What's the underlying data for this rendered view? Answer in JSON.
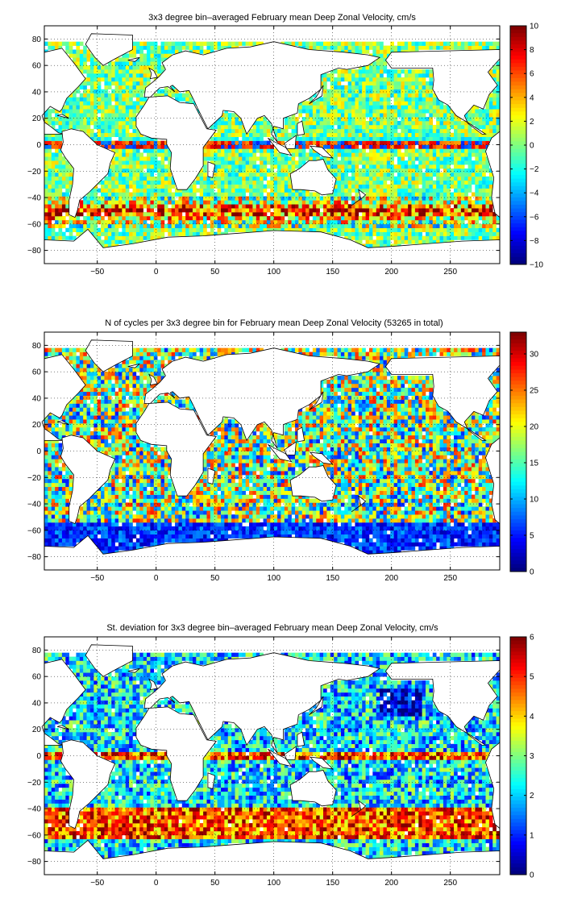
{
  "panels": [
    {
      "title": "3x3 degree bin–averaged February mean Deep Zonal Velocity, cm/s",
      "colorbar_ticks": [
        "10",
        "8",
        "6",
        "4",
        "2",
        "0",
        "−2",
        "−4",
        "−6",
        "−8",
        "−10"
      ]
    },
    {
      "title": "N of cycles per 3x3 degree bin for February mean Deep Zonal Velocity (53265 in total)",
      "colorbar_ticks": [
        "30",
        "25",
        "20",
        "15",
        "10",
        "5",
        "0"
      ]
    },
    {
      "title": "St. deviation for 3x3 degree bin–averaged February mean Deep Zonal Velocity, cm/s",
      "colorbar_ticks": [
        "6",
        "5",
        "4",
        "3",
        "2",
        "1",
        "0"
      ]
    }
  ],
  "chart_data": [
    {
      "type": "heatmap",
      "title": "3x3 degree bin–averaged February mean Deep Zonal Velocity, cm/s",
      "bin_size_degrees": 3,
      "xlim": [
        -95,
        292
      ],
      "ylim": [
        -90,
        90
      ],
      "xticks": [
        -50,
        0,
        50,
        100,
        150,
        200,
        250
      ],
      "yticks": [
        80,
        60,
        40,
        20,
        0,
        -20,
        -40,
        -60,
        -80
      ],
      "colorbar": {
        "colormap": "jet",
        "min": -10,
        "max": 10,
        "ticks": [
          10,
          8,
          6,
          4,
          2,
          0,
          -2,
          -4,
          -6,
          -8,
          -10
        ]
      },
      "grid": true
    },
    {
      "type": "heatmap",
      "title": "N of cycles per 3x3 degree bin for February mean Deep Zonal Velocity (53265 in total)",
      "bin_size_degrees": 3,
      "total_cycles": 53265,
      "xlim": [
        -95,
        292
      ],
      "ylim": [
        -90,
        90
      ],
      "xticks": [
        -50,
        0,
        50,
        100,
        150,
        200,
        250
      ],
      "yticks": [
        80,
        60,
        40,
        20,
        0,
        -20,
        -40,
        -60,
        -80
      ],
      "colorbar": {
        "colormap": "jet",
        "min": 0,
        "max": 33,
        "ticks": [
          30,
          25,
          20,
          15,
          10,
          5,
          0
        ]
      },
      "grid": true
    },
    {
      "type": "heatmap",
      "title": "St. deviation for 3x3 degree bin–averaged February mean Deep Zonal Velocity, cm/s",
      "bin_size_degrees": 3,
      "xlim": [
        -95,
        292
      ],
      "ylim": [
        -90,
        90
      ],
      "xticks": [
        -50,
        0,
        50,
        100,
        150,
        200,
        250
      ],
      "yticks": [
        80,
        60,
        40,
        20,
        0,
        -20,
        -40,
        -60,
        -80
      ],
      "colorbar": {
        "colormap": "jet",
        "min": 0,
        "max": 6,
        "ticks": [
          6,
          5,
          4,
          3,
          2,
          1,
          0
        ]
      },
      "grid": true
    }
  ]
}
